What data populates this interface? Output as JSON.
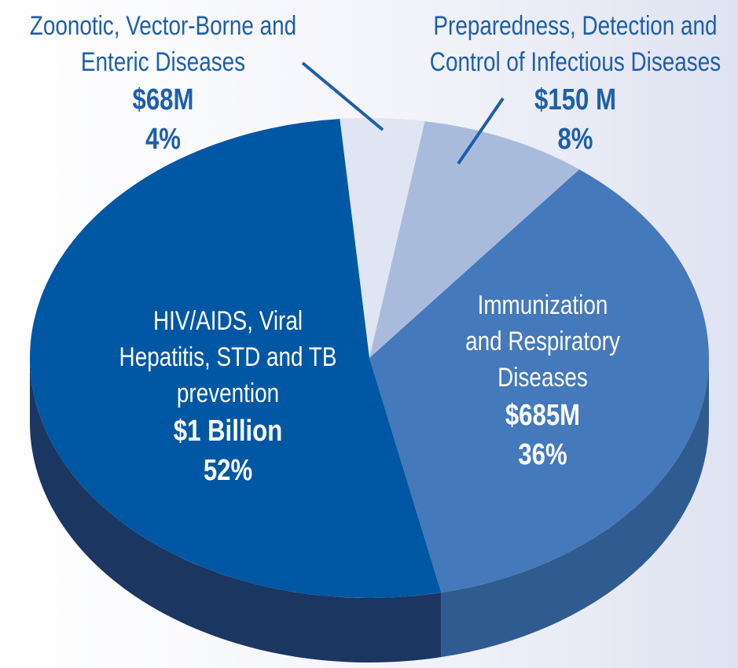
{
  "chart_data": {
    "type": "pie3d",
    "categories": [
      "Zoonotic, Vector-Borne and Enteric Diseases",
      "Preparedness, Detection and Control of Infectious Diseases",
      "Immunization and Respiratory Diseases",
      "HIV/AIDS, Viral Hepatitis, STD and TB prevention"
    ],
    "values": [
      4,
      8,
      36,
      52
    ],
    "value_labels": [
      "4%",
      "8%",
      "36%",
      "52%"
    ],
    "amount_labels": [
      "$68M",
      "$150 M",
      "$685M",
      "$1 Billion"
    ],
    "colors": [
      "#dfe5f2",
      "#a9bbdd",
      "#4479bb",
      "#0057a3"
    ],
    "side_colors": [
      "#b9c1d6",
      "#8595b8",
      "#2f5b90",
      "#1b3661"
    ]
  }
}
